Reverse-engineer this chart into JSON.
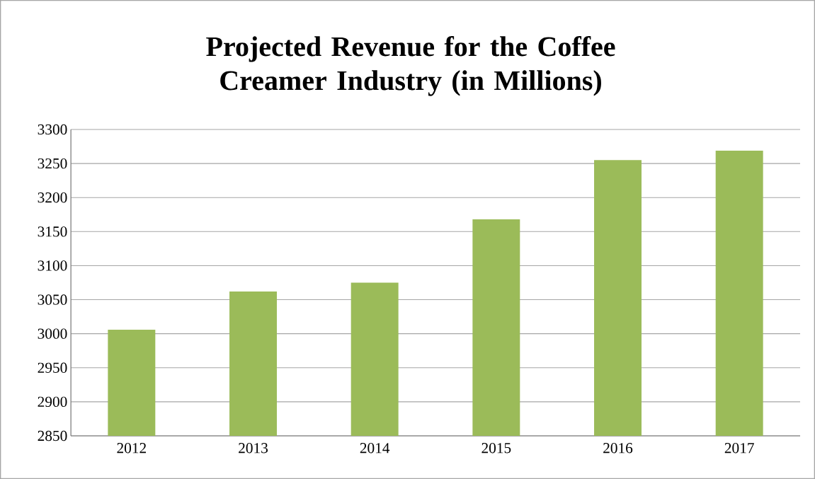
{
  "chart_data": {
    "type": "bar",
    "title": "Projected Revenue for the Coffee Creamer Industry (in Millions)",
    "categories": [
      "2012",
      "2013",
      "2014",
      "2015",
      "2016",
      "2017"
    ],
    "values": [
      3006,
      3062,
      3075,
      3168,
      3255,
      3269
    ],
    "color": "#9bbb59",
    "ylim": [
      2850,
      3300
    ],
    "yticks": [
      2850,
      2900,
      2950,
      3000,
      3050,
      3100,
      3150,
      3200,
      3250,
      3300
    ],
    "grid": "y"
  }
}
